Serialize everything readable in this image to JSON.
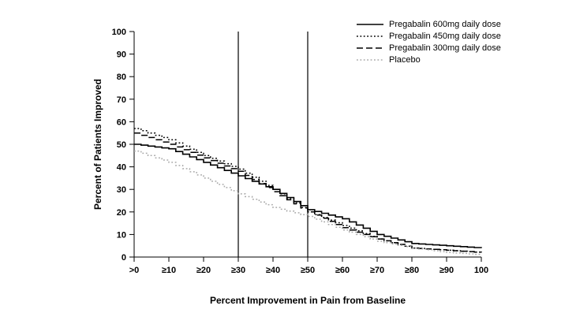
{
  "chart_data": {
    "type": "line",
    "title": "",
    "xlabel": "Percent Improvement in Pain from Baseline",
    "ylabel": "Percent of Patients Improved",
    "x_values": [
      0,
      10,
      20,
      30,
      40,
      50,
      60,
      70,
      80,
      90,
      100
    ],
    "x_tick_labels": [
      ">0",
      "≥10",
      "≥20",
      "≥30",
      "≥40",
      "≥50",
      "≥60",
      "≥70",
      "≥80",
      "≥90",
      "100"
    ],
    "y_ticks": [
      0,
      10,
      20,
      30,
      40,
      50,
      60,
      70,
      80,
      90,
      100
    ],
    "ylim": [
      0,
      100
    ],
    "grid": false,
    "legend_position": "top-right",
    "reference_lines_x": [
      30,
      50
    ],
    "colors": {
      "line_black": "#000000",
      "placebo_gray": "#a8a8a8"
    },
    "series": [
      {
        "name": "Pregabalin 600mg daily dose",
        "style": "solid",
        "color": "#000000",
        "values": [
          50,
          48,
          42,
          36,
          30,
          21,
          17,
          10,
          6,
          5,
          4
        ]
      },
      {
        "name": "Pregabalin 450mg daily dose",
        "style": "dotted",
        "color": "#000000",
        "values": [
          57,
          52,
          45,
          39,
          30,
          20,
          14,
          8,
          4,
          3,
          2
        ]
      },
      {
        "name": "Pregabalin 300mg daily dose",
        "style": "dashed",
        "color": "#000000",
        "values": [
          55,
          50,
          44,
          38,
          29,
          20,
          13,
          8,
          4,
          3,
          2
        ]
      },
      {
        "name": "Placebo",
        "style": "dotted",
        "color": "#a8a8a8",
        "values": [
          47,
          42,
          35,
          28,
          22,
          18,
          12,
          7,
          4,
          2,
          1
        ]
      }
    ]
  }
}
